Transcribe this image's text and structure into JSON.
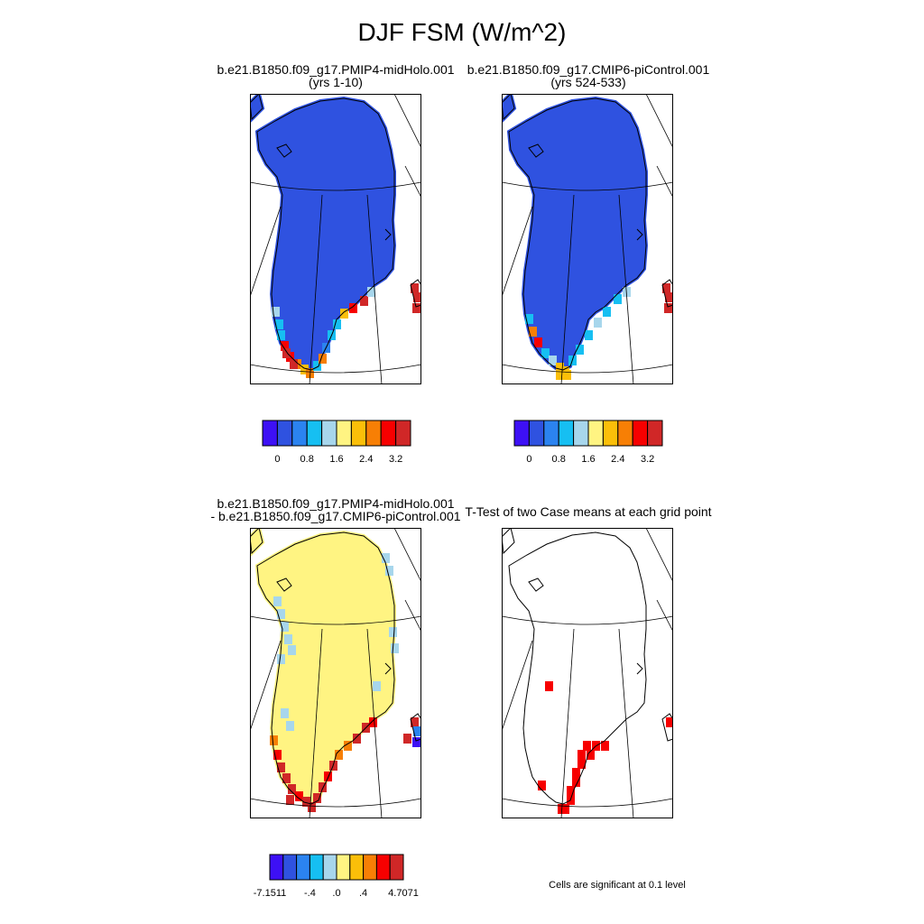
{
  "title": "DJF FSM (W/m^2)",
  "panels": [
    {
      "id": "top-left",
      "line1": "b.e21.B1850.f09_g17.PMIP4-midHolo.001",
      "line2": "(yrs 1-10)"
    },
    {
      "id": "top-right",
      "line1": "b.e21.B1850.f09_g17.CMIP6-piControl.001",
      "line2": "(yrs 524-533)"
    },
    {
      "id": "bottom-left",
      "line1": "b.e21.B1850.f09_g17.PMIP4-midHolo.001",
      "line2": "- b.e21.B1850.f09_g17.CMIP6-piControl.001"
    },
    {
      "id": "bottom-right",
      "line1": "T-Test of two Case means at each grid point",
      "line2": ""
    }
  ],
  "colorbar_colors": [
    "#3d10f5",
    "#2f52e0",
    "#2b83f0",
    "#16bff2",
    "#a7d6ec",
    "#fff482",
    "#fbbf09",
    "#f77f05",
    "#f70000",
    "#d02727"
  ],
  "colorbar_top": {
    "ticks": [
      "0",
      "0.8",
      "1.6",
      "2.4",
      "3.2"
    ]
  },
  "colorbar_bottom": {
    "ticks": [
      "-7.1511",
      "-.4",
      ".0",
      ".4",
      "4.7071"
    ]
  },
  "significance_note": "Cells are significant at 0.1 level",
  "significant_color": "#f70000"
}
